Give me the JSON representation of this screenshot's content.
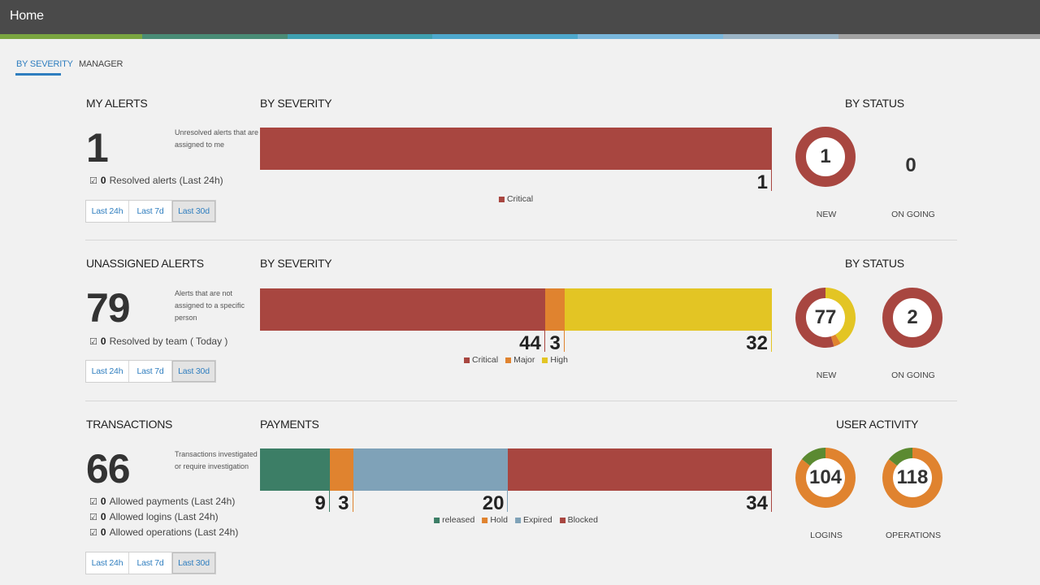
{
  "header": {
    "title": "Home",
    "stripe_colors": [
      "#7aa540",
      "#4a8c76",
      "#3fa0b0",
      "#4ea8cd",
      "#79b7dc",
      "#9ab4c6",
      "#a2a2a2"
    ]
  },
  "tabs": [
    {
      "label": "BY SEVERITY",
      "active": true
    },
    {
      "label": "MANAGER",
      "active": false
    }
  ],
  "colors": {
    "critical": "#a84640",
    "major": "#e0832f",
    "high": "#e3c524",
    "released": "#3c7e66",
    "hold": "#e0832f",
    "expired": "#7fa2b8",
    "blocked": "#a84640",
    "donut_green": "#5b8a31"
  },
  "time_filters": [
    "Last 24h",
    "Last 7d",
    "Last 30d"
  ],
  "my_alerts": {
    "title": "MY ALERTS",
    "count": "1",
    "description": "Unresolved alerts that are assigned to me",
    "checks": [
      {
        "count": "0",
        "label": "Resolved alerts (Last 24h)"
      }
    ],
    "active_filter": "Last 30d",
    "severity_title": "BY SEVERITY",
    "status_title": "BY STATUS",
    "legend": [
      "Critical"
    ],
    "bar": [
      {
        "name": "Critical",
        "value": 1,
        "label": "1"
      }
    ],
    "status": {
      "new": {
        "value": "1",
        "label": "NEW",
        "segments": [
          {
            "name": "Critical",
            "value": 1
          }
        ]
      },
      "ongoing": {
        "value": "0",
        "label": "ON GOING"
      }
    }
  },
  "unassigned": {
    "title": "UNASSIGNED ALERTS",
    "count": "79",
    "description": "Alerts that are not assigned to a specific person",
    "checks": [
      {
        "count": "0",
        "label": "Resolved by team ( Today )"
      }
    ],
    "active_filter": "Last 30d",
    "severity_title": "BY SEVERITY",
    "status_title": "BY STATUS",
    "legend": [
      "Critical",
      "Major",
      "High"
    ],
    "bar": [
      {
        "name": "Critical",
        "value": 44,
        "label": "44"
      },
      {
        "name": "Major",
        "value": 3,
        "label": "3"
      },
      {
        "name": "High",
        "value": 32,
        "label": "32"
      }
    ],
    "status": {
      "new": {
        "value": "77",
        "label": "NEW",
        "segments": [
          {
            "name": "Critical",
            "value": 42
          },
          {
            "name": "Major",
            "value": 3
          },
          {
            "name": "High",
            "value": 32
          }
        ]
      },
      "ongoing": {
        "value": "2",
        "label": "ON GOING",
        "segments": [
          {
            "name": "Critical",
            "value": 2
          }
        ]
      }
    }
  },
  "transactions": {
    "title": "TRANSACTIONS",
    "count": "66",
    "description": "Transactions investigated or require investigation",
    "checks": [
      {
        "count": "0",
        "label": "Allowed payments (Last 24h)"
      },
      {
        "count": "0",
        "label": "Allowed logins (Last 24h)"
      },
      {
        "count": "0",
        "label": "Allowed operations (Last 24h)"
      }
    ],
    "active_filter": "Last 30d",
    "payments_title": "PAYMENTS",
    "activity_title": "USER ACTIVITY",
    "legend": [
      "released",
      "Hold",
      "Expired",
      "Blocked"
    ],
    "bar": [
      {
        "name": "released",
        "value": 9,
        "label": "9"
      },
      {
        "name": "Hold",
        "value": 3,
        "label": "3"
      },
      {
        "name": "Expired",
        "value": 20,
        "label": "20"
      },
      {
        "name": "Blocked",
        "value": 34,
        "label": "34"
      }
    ],
    "activity": {
      "logins": {
        "value": "104",
        "label": "LOGINS",
        "segments": [
          {
            "name": "success",
            "value": 15
          },
          {
            "name": "other",
            "value": 89
          }
        ]
      },
      "operations": {
        "value": "118",
        "label": "OPERATIONS",
        "segments": [
          {
            "name": "success",
            "value": 17
          },
          {
            "name": "other",
            "value": 101
          }
        ]
      }
    }
  }
}
